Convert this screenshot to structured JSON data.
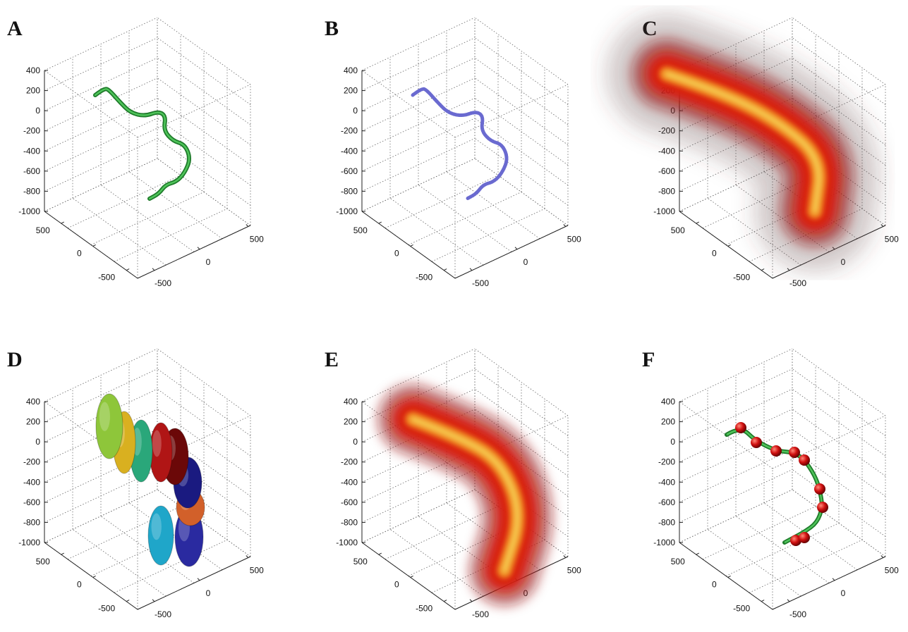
{
  "panels": [
    {
      "label": "A",
      "zticks": [
        400,
        200,
        0,
        -200,
        -400,
        -600,
        -800,
        -1000
      ],
      "xticks": [
        500,
        0,
        -500
      ],
      "yticks": [
        -500,
        0,
        500
      ]
    },
    {
      "label": "B",
      "zticks": [
        400,
        200,
        0,
        -200,
        -400,
        -600,
        -800,
        -1000
      ],
      "xticks": [
        500,
        0,
        -500
      ],
      "yticks": [
        -500,
        0,
        500
      ]
    },
    {
      "label": "C",
      "zticks": [
        400,
        200,
        0,
        -200,
        -400,
        -600,
        -800,
        -1000
      ],
      "xticks": [
        500,
        0,
        -500
      ],
      "yticks": [
        -500,
        0,
        500
      ]
    },
    {
      "label": "D",
      "zticks": [
        400,
        200,
        0,
        -200,
        -400,
        -600,
        -800,
        -1000
      ],
      "xticks": [
        500,
        0,
        -500
      ],
      "yticks": [
        -500,
        0,
        500
      ]
    },
    {
      "label": "E",
      "zticks": [
        400,
        200,
        0,
        -200,
        -400,
        -600,
        -800,
        -1000
      ],
      "xticks": [
        500,
        0,
        -500
      ],
      "yticks": [
        -500,
        0,
        500
      ]
    },
    {
      "label": "F",
      "zticks": [
        400,
        200,
        0,
        -200,
        -400,
        -600,
        -800,
        -1000
      ],
      "xticks": [
        500,
        0,
        -500
      ],
      "yticks": [
        -500,
        0,
        500
      ]
    }
  ]
}
